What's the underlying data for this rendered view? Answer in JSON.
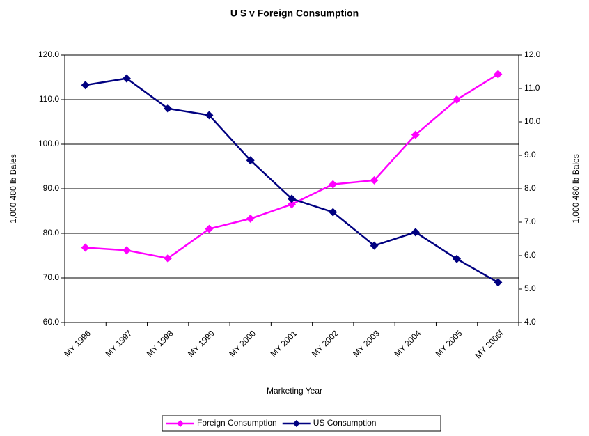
{
  "chart_data": {
    "type": "line",
    "title": "U S v Foreign Consumption",
    "xlabel": "Marketing Year",
    "ylabel": "1,000 480 lb Bales",
    "y2label": "1,000 480 lb Bales",
    "categories": [
      "MY 1996",
      "MY 1997",
      "MY 1998",
      "MY 1999",
      "MY 2000",
      "MY 2001",
      "MY 2002",
      "MY 2003",
      "MY 2004",
      "MY 2005",
      "MY 2006f"
    ],
    "series": [
      {
        "name": "Foreign Consumption",
        "color": "#ff00ff",
        "values": [
          76.8,
          76.2,
          74.4,
          81.0,
          83.3,
          86.5,
          91.0,
          91.9,
          102.1,
          110.0,
          115.7
        ]
      },
      {
        "name": "US Consumption",
        "color": "#000080",
        "axis": "y2",
        "values": [
          11.1,
          11.3,
          10.4,
          10.2,
          8.85,
          7.7,
          7.3,
          6.3,
          6.7,
          5.9,
          5.2
        ]
      }
    ],
    "ylim": [
      60,
      120
    ],
    "yticks": [
      {
        "value": 60,
        "label": "60.0"
      },
      {
        "value": 70,
        "label": "70.0"
      },
      {
        "value": 80,
        "label": "80.0"
      },
      {
        "value": 90,
        "label": "90.0"
      },
      {
        "value": 100,
        "label": "100.0"
      },
      {
        "value": 110,
        "label": "110.0"
      },
      {
        "value": 120,
        "label": "120.0"
      }
    ],
    "y2lim": [
      4,
      12
    ],
    "y2ticks": [
      {
        "value": 4,
        "label": "4.0"
      },
      {
        "value": 5,
        "label": "5.0"
      },
      {
        "value": 6,
        "label": "6.0"
      },
      {
        "value": 7,
        "label": "7.0"
      },
      {
        "value": 8,
        "label": "8.0"
      },
      {
        "value": 9,
        "label": "9.0"
      },
      {
        "value": 10,
        "label": "10.0"
      },
      {
        "value": 11,
        "label": "11.0"
      },
      {
        "value": 12,
        "label": "12.0"
      }
    ],
    "grid": true,
    "legend": "bottom"
  }
}
